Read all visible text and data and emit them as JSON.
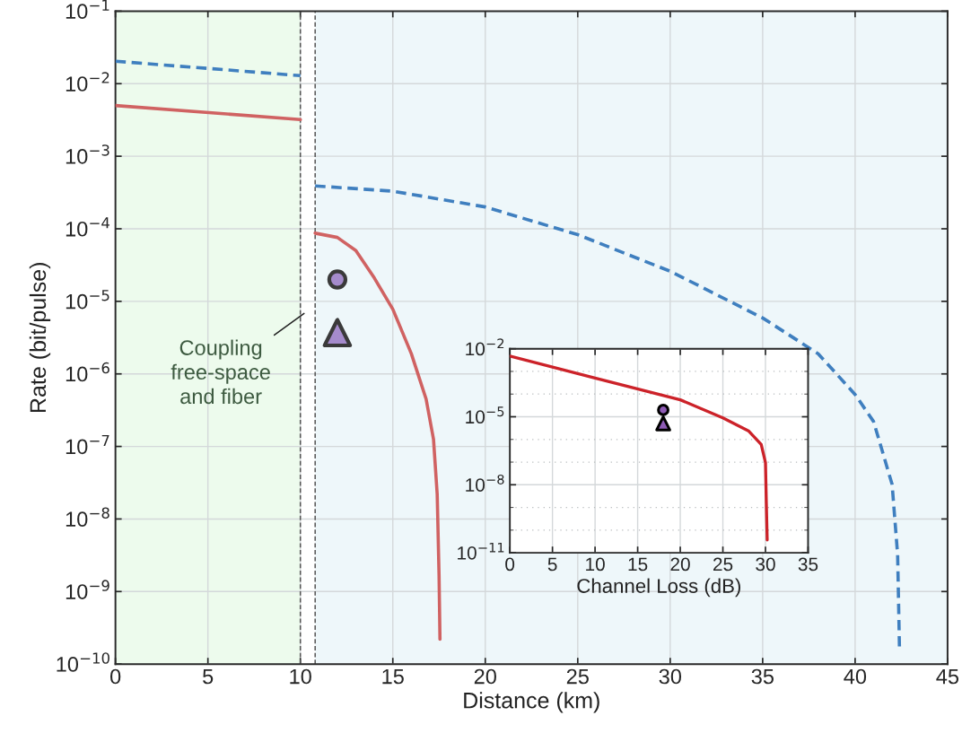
{
  "chart_data": [
    {
      "type": "line",
      "xlabel": "Distance (km)",
      "ylabel": "Rate (bit/pulse)",
      "log": "y",
      "grid": true,
      "xlim": [
        0,
        45
      ],
      "xticks": [
        0,
        5,
        10,
        15,
        20,
        25,
        30,
        35,
        40,
        45
      ],
      "ylim": [
        1e-10,
        0.1
      ],
      "yticks": [
        {
          "value": 1e-10,
          "label": "10$^{−10}$"
        },
        {
          "value": 1e-09,
          "label": "10$^{−9}$"
        },
        {
          "value": 1e-08,
          "label": "10$^{−8}$"
        },
        {
          "value": 1e-07,
          "label": "10$^{−7}$"
        },
        {
          "value": 1e-06,
          "label": "10$^{−6}$"
        },
        {
          "value": 1e-05,
          "label": "10$^{−5}$"
        },
        {
          "value": 0.0001,
          "label": "10$^{−4}$"
        },
        {
          "value": 0.001,
          "label": "10$^{−3}$"
        },
        {
          "value": 0.01,
          "label": "10$^{−2}$"
        },
        {
          "value": 0.1,
          "label": "10$^{−1}$"
        }
      ],
      "bands": [
        {
          "axis": "x",
          "from": 0,
          "to": 10,
          "color": "#edfbed"
        },
        {
          "axis": "x",
          "from": 10.8,
          "to": 45,
          "color": "#eef7fa"
        }
      ],
      "ref_lines": [
        {
          "axis": "x",
          "value": 10,
          "color": "#555555",
          "line_style": "dashed"
        },
        {
          "axis": "x",
          "value": 10.8,
          "color": "#555555",
          "line_style": "dashed"
        }
      ],
      "annotations": [
        {
          "text": "Coupling\nfree-space\nand fiber",
          "x": 10.2,
          "y": 6.8e-06
        }
      ],
      "series": [
        {
          "color": "#3f7fbf",
          "line_style": "dashed",
          "x": [
            0,
            10
          ],
          "values": [
            0.0204,
            0.0129
          ]
        },
        {
          "color": "#d06262",
          "line_style": "solid",
          "x": [
            0,
            10
          ],
          "values": [
            0.005,
            0.0032
          ]
        },
        {
          "color": "#3f7fbf",
          "line_style": "dashed",
          "x": [
            10.8,
            15,
            20,
            25,
            30,
            35,
            38,
            40,
            41,
            42,
            42.3,
            42.4
          ],
          "values": [
            0.00039,
            0.00033,
            0.0002,
            8.3e-05,
            2.6e-05,
            5.9e-06,
            1.9e-06,
            5.2e-07,
            2.2e-07,
            3e-08,
            3.2e-09,
            1.6e-10
          ]
        },
        {
          "color": "#d06262",
          "line_style": "solid",
          "x": [
            10.8,
            12,
            13,
            14,
            15,
            16,
            16.8,
            17.2,
            17.4,
            17.5,
            17.55
          ],
          "values": [
            8.7e-05,
            7.6e-05,
            5e-05,
            2.1e-05,
            7.8e-06,
            1.9e-06,
            4.5e-07,
            1.26e-07,
            2.2e-08,
            1.7e-09,
            2.2e-10
          ]
        },
        {
          "type": "scatter",
          "marker": "circle",
          "color": "#a58bcc",
          "x": [
            12
          ],
          "values": [
            2e-05
          ]
        },
        {
          "type": "scatter",
          "marker": "triangle",
          "color": "#a58bcc",
          "x": [
            12
          ],
          "values": [
            3.7e-06
          ]
        }
      ]
    },
    {
      "type": "line",
      "xlabel": "Channel Loss (dB)",
      "log": "y",
      "grid": true,
      "xlim": [
        0,
        35
      ],
      "xticks": [
        0,
        5,
        10,
        15,
        20,
        25,
        30,
        35
      ],
      "ylim": [
        1e-11,
        0.01
      ],
      "yticks": [
        {
          "value": 1e-11,
          "label": "10$^{−11}$"
        },
        {
          "value": 1e-08,
          "label": "10$^{−8}$"
        },
        {
          "value": 1e-05,
          "label": "10$^{−5}$"
        },
        {
          "value": 0.01,
          "label": "10$^{−2}$"
        }
      ],
      "series": [
        {
          "color": "#cc2229",
          "line_style": "solid",
          "x": [
            0,
            10,
            20,
            25,
            28,
            29.5,
            30,
            30.1,
            30.2
          ],
          "values": [
            0.0048,
            0.00051,
            5.6e-05,
            8.9e-06,
            2.4e-06,
            6e-07,
            9.5e-08,
            1.5e-09,
            3.7e-11
          ]
        },
        {
          "type": "scatter",
          "marker": "circle",
          "color": "#8e5bb5",
          "x": [
            18
          ],
          "values": [
            2e-05
          ]
        },
        {
          "type": "scatter",
          "marker": "triangle",
          "color": "#8e5bb5",
          "x": [
            18
          ],
          "values": [
            5.1e-06
          ]
        }
      ]
    }
  ]
}
